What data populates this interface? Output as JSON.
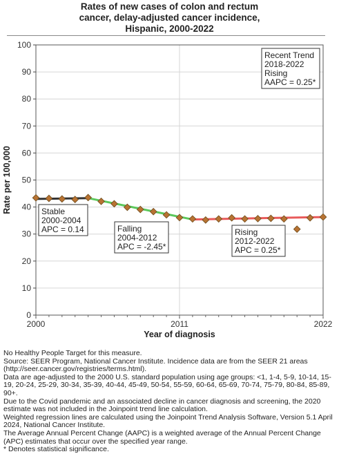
{
  "chart_data": {
    "type": "line",
    "title_lines": [
      "Rates of new cases of colon and rectum",
      "cancer, delay-adjusted cancer incidence,",
      "Hispanic,  2000-2022"
    ],
    "xlabel": "Year of diagnosis",
    "ylabel": "Rate per 100,000",
    "xlim": [
      2000,
      2022
    ],
    "ylim": [
      0,
      100
    ],
    "x_ticks": [
      "2000",
      "2011",
      "2022"
    ],
    "y_ticks": [
      "0",
      "10",
      "20",
      "30",
      "40",
      "50",
      "60",
      "70",
      "80",
      "90",
      "100"
    ],
    "grid": true,
    "series": [
      {
        "marker": "diamond",
        "color": "#b87333",
        "x": [
          2000,
          2001,
          2002,
          2003,
          2004,
          2005,
          2006,
          2007,
          2008,
          2009,
          2010,
          2011,
          2012,
          2013,
          2014,
          2015,
          2016,
          2017,
          2018,
          2019,
          2020,
          2021,
          2022
        ],
        "y": [
          43.4,
          43.2,
          43.0,
          42.8,
          43.5,
          42.1,
          41.2,
          39.9,
          39.1,
          38.3,
          37.1,
          36.1,
          35.6,
          35.2,
          35.6,
          36.0,
          35.6,
          35.7,
          35.8,
          35.6,
          31.8,
          36.0,
          36.3
        ]
      }
    ],
    "trend_segments": [
      {
        "x": [
          2000,
          2004
        ],
        "y": [
          43.0,
          43.3
        ],
        "color": "#333333"
      },
      {
        "x": [
          2004,
          2012
        ],
        "y": [
          43.3,
          35.4
        ],
        "color": "#5cc85c"
      },
      {
        "x": [
          2012,
          2022
        ],
        "y": [
          35.4,
          36.3
        ],
        "color": "#e85a5a"
      }
    ],
    "annotations": [
      {
        "lines": [
          "Stable",
          "2000-2004",
          "APC =  0.14"
        ]
      },
      {
        "lines": [
          "Falling",
          "2004-2012",
          "APC = -2.45*"
        ]
      },
      {
        "lines": [
          "Rising",
          "2012-2022",
          "APC =  0.25*"
        ]
      },
      {
        "lines": [
          "Recent Trend",
          "2018-2022",
          "Rising",
          "AAPC =  0.25*"
        ]
      }
    ]
  },
  "footnotes": [
    "No Healthy People Target for this measure.",
    "Source: SEER Program, National Cancer Institute. Incidence data are from the SEER 21 areas (http://seer.cancer.gov/registries/terms.html).",
    "Data are age-adjusted to the 2000 U.S. standard population using age groups: <1, 1-4, 5-9, 10-14, 15-19, 20-24, 25-29, 30-34, 35-39, 40-44, 45-49, 50-54, 55-59, 60-64, 65-69, 70-74, 75-79, 80-84, 85-89, 90+.",
    "Due to the Covid pandemic and an associated decline in cancer diagnosis and screening, the 2020 estimate was not included in the Joinpoint trend line calculation.",
    "Weighted regression lines are calculated using the Joinpoint Trend Analysis Software, Version 5.1 April 2024, National Cancer Institute.",
    "The Average Annual Percent Change (AAPC) is a weighted average of the Annual Percent Change (APC) estimates that occur over the specified year range.",
    "* Denotes statistical significance."
  ]
}
